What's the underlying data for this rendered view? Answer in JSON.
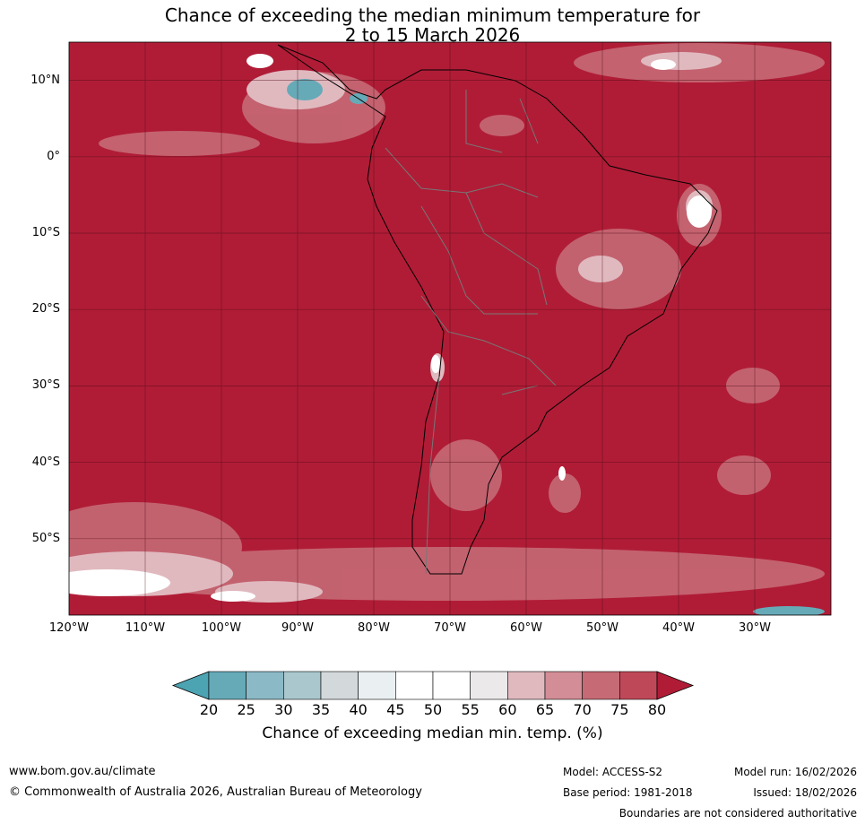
{
  "title": {
    "line1": "Chance of exceeding the median minimum temperature for",
    "line2": "2 to 15 March 2026"
  },
  "map": {
    "background_color": "#B01C36",
    "lat_labels": [
      "10°N",
      "0°",
      "10°S",
      "20°S",
      "30°S",
      "40°S",
      "50°S"
    ],
    "lon_labels": [
      "120°W",
      "110°W",
      "100°W",
      "90°W",
      "80°W",
      "70°W",
      "60°W",
      "50°W",
      "40°W",
      "30°W"
    ],
    "lat_values": [
      10,
      0,
      -10,
      -20,
      -30,
      -40,
      -50
    ],
    "lon_values": [
      -120,
      -110,
      -100,
      -90,
      -80,
      -70,
      -60,
      -50,
      -40,
      -30
    ],
    "lat_range": [
      -60,
      15
    ],
    "lon_range": [
      -120,
      -20
    ],
    "grid": true
  },
  "colorbar": {
    "ticks": [
      "20",
      "25",
      "30",
      "35",
      "40",
      "45",
      "50",
      "55",
      "60",
      "65",
      "70",
      "75",
      "80"
    ],
    "colors": [
      "#66AAB8",
      "#8BB9C6",
      "#AAC7CE",
      "#D3D9DB",
      "#EAF0F2",
      "#FFFFFF",
      "#FFFFFF",
      "#EBE9EA",
      "#E0B9BF",
      "#D38D96",
      "#C66A76",
      "#BF4858"
    ],
    "low_color": "#4CA3B2",
    "high_color": "#B01C36",
    "title": "Chance of exceeding median min. temp. (%)"
  },
  "footer": {
    "website": "www.bom.gov.au/climate",
    "copyright": "© Commonwealth of Australia 2026, Australian Bureau of Meteorology",
    "model": "Model: ACCESS-S2",
    "base_period": "Base period: 1981-2018",
    "model_run": "Model run: 16/02/2026",
    "issued": "Issued: 18/02/2026",
    "disclaimer": "Boundaries are not considered authoritative"
  }
}
